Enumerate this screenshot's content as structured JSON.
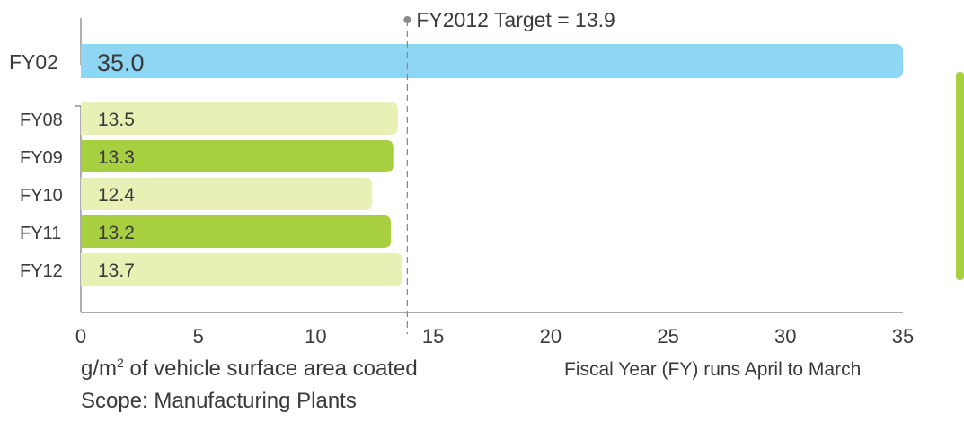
{
  "chart_data": {
    "type": "bar",
    "orientation": "horizontal",
    "baseline": {
      "category": "FY02",
      "value": 35.0,
      "value_label": "35.0",
      "color": "#8ed6f3"
    },
    "categories": [
      "FY08",
      "FY09",
      "FY10",
      "FY11",
      "FY12"
    ],
    "values": [
      13.5,
      13.3,
      12.4,
      13.2,
      13.7
    ],
    "value_labels": [
      "13.5",
      "13.3",
      "12.4",
      "13.2",
      "13.7"
    ],
    "colors": [
      "#e8f0b5",
      "#a8cf40",
      "#e8f0b5",
      "#a8cf40",
      "#e8f0b5"
    ],
    "target": {
      "value": 13.9,
      "label": "FY2012 Target = 13.9"
    },
    "xlim": [
      0,
      35
    ],
    "xticks": [
      0,
      5,
      10,
      15,
      20,
      25,
      30,
      35
    ],
    "xtick_labels": [
      "0",
      "5",
      "10",
      "15",
      "20",
      "25",
      "30",
      "35"
    ],
    "grid": false,
    "accent_bar_color": "#a8cf40"
  },
  "labels": {
    "unit_prefix": "g/m",
    "unit_superscript": "2",
    "unit_suffix": " of vehicle surface area coated",
    "scope": "Scope: Manufacturing Plants",
    "fiscal_note": "Fiscal Year (FY) runs April to March"
  }
}
